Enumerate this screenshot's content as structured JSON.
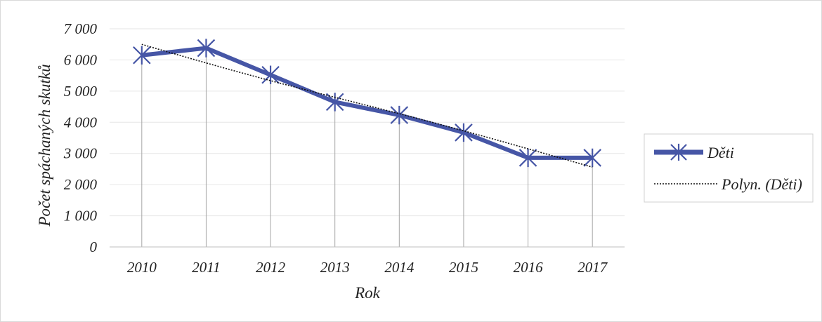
{
  "colors": {
    "series": "#4656a6",
    "trend": "#111111",
    "grid": "#e6e6e6",
    "drop": "#a6a6a6",
    "axis": "#bfbfbf"
  },
  "chart_data": {
    "type": "line",
    "title": "",
    "xlabel": "Rok",
    "ylabel": "Počet spáchaných skutků",
    "categories": [
      "2010",
      "2011",
      "2012",
      "2013",
      "2014",
      "2015",
      "2016",
      "2017"
    ],
    "ylim": [
      0,
      7000
    ],
    "yticks": [
      0,
      1000,
      2000,
      3000,
      4000,
      5000,
      6000,
      7000
    ],
    "ytick_labels": [
      "0",
      "1 000",
      "2 000",
      "3 000",
      "4 000",
      "5 000",
      "6 000",
      "7 000"
    ],
    "grid": true,
    "drop_lines": true,
    "legend_position": "right",
    "series": [
      {
        "name": "Děti",
        "values": [
          6150,
          6380,
          5520,
          4650,
          4230,
          3670,
          2860,
          2860
        ],
        "marker": "asterisk"
      }
    ],
    "trendline": {
      "name": "Polyn. (Děti)",
      "type": "polynomial",
      "values": [
        6500,
        5900,
        5330,
        4800,
        4280,
        3730,
        3150,
        2560
      ]
    }
  }
}
